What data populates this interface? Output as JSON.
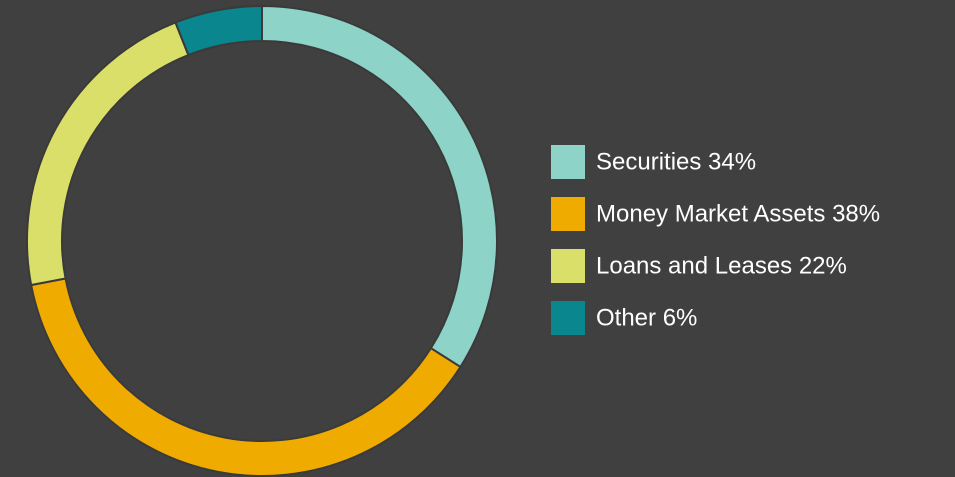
{
  "chart_data": {
    "type": "donut",
    "categories": [
      "Securities 34%",
      "Money Market Assets 38%",
      "Loans and Leases 22%",
      "Other 6%"
    ],
    "values": [
      34,
      38,
      22,
      6
    ],
    "colors": [
      "#8dd3c7",
      "#f0ab00",
      "#d9df69",
      "#0a868e"
    ],
    "legend": "right"
  }
}
